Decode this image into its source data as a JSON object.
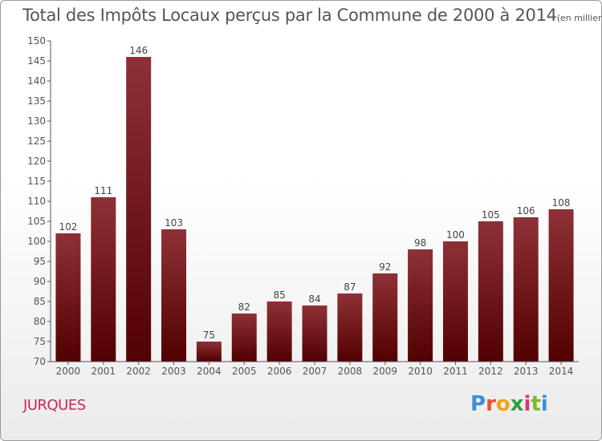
{
  "header": {
    "title": "Total des Impôts Locaux perçus par la Commune de 2000 à 2014",
    "unit": "(en milliers d'€)"
  },
  "footer": {
    "commune": "JURQUES",
    "brand_letters": [
      "P",
      "r",
      "o",
      "x",
      "i",
      "t",
      "i"
    ],
    "brand_colors": [
      "#3a8fd6",
      "#e9522f",
      "#f2a31b",
      "#2f9e3f",
      "#d9366f",
      "#7fb82e",
      "#3a8fd6"
    ]
  },
  "colors": {
    "bar_top": "#8e3137",
    "bar_bottom": "#520000",
    "axis": "#555555",
    "grid": "#dddddd"
  },
  "chart_data": {
    "type": "bar",
    "title": "Total des Impôts Locaux perçus par la Commune de 2000 à 2014",
    "ylabel": "(en milliers d'€)",
    "categories": [
      "2000",
      "2001",
      "2002",
      "2003",
      "2004",
      "2005",
      "2006",
      "2007",
      "2008",
      "2009",
      "2010",
      "2011",
      "2012",
      "2013",
      "2014"
    ],
    "values": [
      102,
      111,
      146,
      103,
      75,
      82,
      85,
      84,
      87,
      92,
      98,
      100,
      105,
      106,
      108
    ],
    "ylim": [
      70,
      150
    ],
    "yticks": [
      70,
      75,
      80,
      85,
      90,
      95,
      100,
      105,
      110,
      115,
      120,
      125,
      130,
      135,
      140,
      145,
      150
    ],
    "grid": false,
    "legend": "none"
  }
}
